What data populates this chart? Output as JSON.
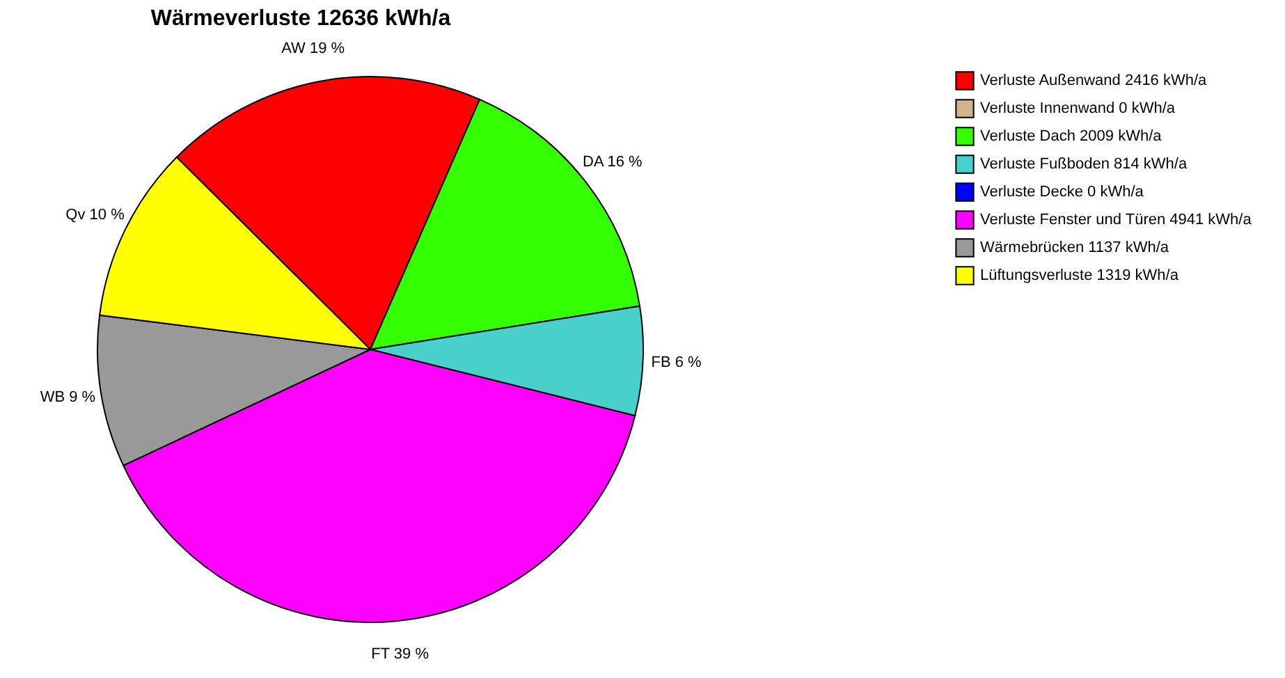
{
  "chart_data": {
    "type": "pie",
    "title": "Wärmeverluste 12636 kWh/a",
    "categories": [
      "Verluste Außenwand 2416 kWh/a",
      "Verluste Innenwand 0 kWh/a",
      "Verluste Dach 2009 kWh/a",
      "Verluste Fußboden 814 kWh/a",
      "Verluste Decke 0 kWh/a",
      "Verluste Fenster und Türen 4941 kWh/a",
      "Wärmebrücken 1137 kWh/a",
      "Lüftungsverluste 1319 kWh/a"
    ],
    "values": [
      2416,
      0,
      2009,
      814,
      0,
      4941,
      1137,
      1319
    ],
    "value_labels": [
      "AW 19 %",
      null,
      "DA 16 %",
      "FB 6 %",
      null,
      "FT 39 %",
      "WB 9 %",
      "Qv 10 %"
    ],
    "colors": [
      "#ff0000",
      "#d2b48c",
      "#33ff00",
      "#48d1cc",
      "#0000ff",
      "#ff00ff",
      "#999999",
      "#ffff00"
    ],
    "legend": "right"
  }
}
